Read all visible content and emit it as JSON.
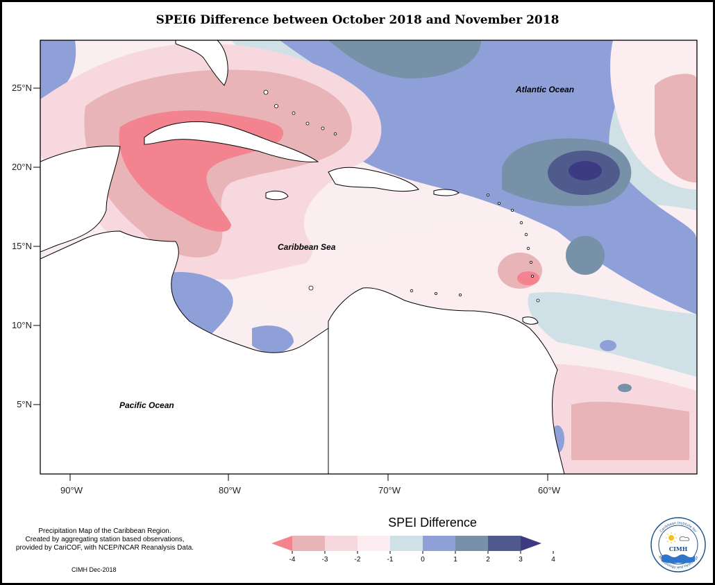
{
  "title": "SPEI6 Difference between October 2018 and November 2018",
  "map": {
    "lon_ticks": [
      "90°W",
      "80°W",
      "70°W",
      "60°W"
    ],
    "lat_ticks": [
      "25°N",
      "20°N",
      "15°N",
      "10°N",
      "5°N"
    ],
    "labels": {
      "atlantic": "Atlantic Ocean",
      "caribbean": "Caribbean Sea",
      "pacific": "Pacific Ocean"
    }
  },
  "credits": {
    "line1": "Precipitation Map of the Caribbean Region.",
    "line2": "Created by aggregating station based observations,",
    "line3": "provided by CariCOF, with NCEP/NCAR Reanalysis Data.",
    "stamp": "CIMH Dec-2018"
  },
  "legend": {
    "title": "SPEI Difference",
    "ticks": [
      "-4",
      "-3",
      "-2",
      "-1",
      "0",
      "1",
      "2",
      "3",
      "4"
    ],
    "colors": [
      "#f2838f",
      "#e9b4b8",
      "#f7d8de",
      "#fceef0",
      "#cfe1e6",
      "#8f9fd8",
      "#7792a8",
      "#505a8c",
      "#3c3b82"
    ]
  },
  "logo": {
    "top_text": "Caribbean Institute for",
    "name": "CIMH",
    "bottom_text": "Meteorology and Hydrology"
  }
}
